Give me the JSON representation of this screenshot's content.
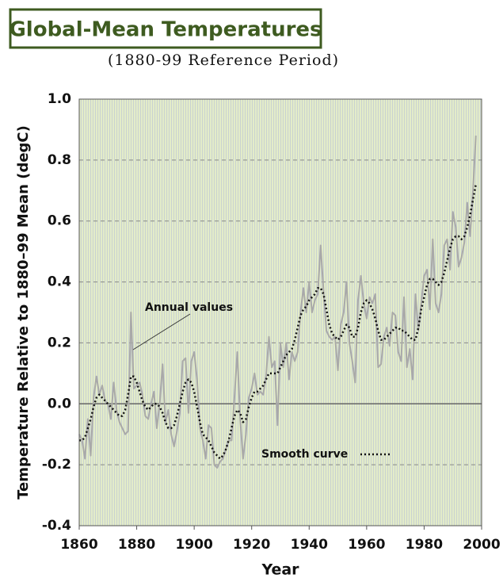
{
  "chart_data": {
    "type": "line",
    "title": "Global-Mean Temperatures",
    "subtitle": "(1880-99 Reference Period)",
    "x_label": "Year",
    "y_label": "Temperature Relative to 1880–99 Mean (degC)",
    "x": [
      1860,
      1861,
      1862,
      1863,
      1864,
      1865,
      1866,
      1867,
      1868,
      1869,
      1870,
      1871,
      1872,
      1873,
      1874,
      1875,
      1876,
      1877,
      1878,
      1879,
      1880,
      1881,
      1882,
      1883,
      1884,
      1885,
      1886,
      1887,
      1888,
      1889,
      1890,
      1891,
      1892,
      1893,
      1894,
      1895,
      1896,
      1897,
      1898,
      1899,
      1900,
      1901,
      1902,
      1903,
      1904,
      1905,
      1906,
      1907,
      1908,
      1909,
      1910,
      1911,
      1912,
      1913,
      1914,
      1915,
      1916,
      1917,
      1918,
      1919,
      1920,
      1921,
      1922,
      1923,
      1924,
      1925,
      1926,
      1927,
      1928,
      1929,
      1930,
      1931,
      1932,
      1933,
      1934,
      1935,
      1936,
      1937,
      1938,
      1939,
      1940,
      1941,
      1942,
      1943,
      1944,
      1945,
      1946,
      1947,
      1948,
      1949,
      1950,
      1951,
      1952,
      1953,
      1954,
      1955,
      1956,
      1957,
      1958,
      1959,
      1960,
      1961,
      1962,
      1963,
      1964,
      1965,
      1966,
      1967,
      1968,
      1969,
      1970,
      1971,
      1972,
      1973,
      1974,
      1975,
      1976,
      1977,
      1978,
      1979,
      1980,
      1981,
      1982,
      1983,
      1984,
      1985,
      1986,
      1987,
      1988,
      1989,
      1990,
      1991,
      1992,
      1993,
      1994,
      1995,
      1996,
      1997,
      1998
    ],
    "series": [
      {
        "name": "Annual values",
        "color": "#a9a9a9",
        "line_style": "solid",
        "values": [
          -0.1,
          -0.12,
          -0.18,
          -0.05,
          -0.17,
          0.02,
          0.09,
          0.03,
          0.06,
          0.01,
          0.0,
          -0.05,
          0.07,
          -0.02,
          -0.06,
          -0.08,
          -0.1,
          -0.09,
          0.3,
          0.05,
          0.06,
          0.07,
          0.03,
          -0.04,
          -0.05,
          0.0,
          0.04,
          -0.08,
          0.0,
          0.13,
          -0.06,
          -0.02,
          -0.1,
          -0.14,
          -0.09,
          -0.03,
          0.14,
          0.15,
          -0.03,
          0.14,
          0.17,
          0.08,
          -0.08,
          -0.12,
          -0.18,
          -0.07,
          -0.08,
          -0.2,
          -0.21,
          -0.19,
          -0.18,
          -0.15,
          -0.12,
          -0.12,
          0.02,
          0.17,
          -0.05,
          -0.18,
          -0.1,
          0.02,
          0.05,
          0.1,
          0.03,
          0.04,
          0.03,
          0.09,
          0.22,
          0.12,
          0.14,
          -0.07,
          0.2,
          0.12,
          0.2,
          0.08,
          0.17,
          0.14,
          0.17,
          0.3,
          0.38,
          0.3,
          0.4,
          0.3,
          0.34,
          0.36,
          0.52,
          0.37,
          0.24,
          0.22,
          0.21,
          0.22,
          0.11,
          0.26,
          0.3,
          0.4,
          0.2,
          0.14,
          0.07,
          0.34,
          0.42,
          0.33,
          0.28,
          0.35,
          0.33,
          0.36,
          0.12,
          0.13,
          0.22,
          0.25,
          0.19,
          0.3,
          0.29,
          0.17,
          0.14,
          0.35,
          0.12,
          0.18,
          0.08,
          0.36,
          0.24,
          0.33,
          0.42,
          0.44,
          0.31,
          0.54,
          0.33,
          0.3,
          0.36,
          0.52,
          0.54,
          0.44,
          0.63,
          0.58,
          0.45,
          0.48,
          0.53,
          0.66,
          0.55,
          0.7,
          0.88
        ]
      },
      {
        "name": "Smooth curve",
        "color": "#111111",
        "line_style": "dotted",
        "values": [
          -0.12,
          -0.12,
          -0.11,
          -0.08,
          -0.05,
          -0.01,
          0.02,
          0.03,
          0.02,
          0.01,
          0.0,
          -0.01,
          -0.02,
          -0.03,
          -0.04,
          -0.04,
          -0.02,
          0.03,
          0.09,
          0.09,
          0.07,
          0.04,
          0.01,
          -0.01,
          -0.02,
          -0.01,
          0.0,
          0.0,
          -0.01,
          -0.03,
          -0.06,
          -0.08,
          -0.08,
          -0.07,
          -0.04,
          0.0,
          0.04,
          0.07,
          0.08,
          0.07,
          0.04,
          -0.01,
          -0.06,
          -0.1,
          -0.11,
          -0.12,
          -0.14,
          -0.16,
          -0.17,
          -0.18,
          -0.17,
          -0.15,
          -0.12,
          -0.08,
          -0.04,
          -0.02,
          -0.03,
          -0.06,
          -0.05,
          -0.01,
          0.02,
          0.04,
          0.04,
          0.05,
          0.06,
          0.08,
          0.1,
          0.1,
          0.1,
          0.1,
          0.12,
          0.14,
          0.16,
          0.17,
          0.18,
          0.21,
          0.25,
          0.29,
          0.31,
          0.32,
          0.34,
          0.35,
          0.36,
          0.38,
          0.38,
          0.36,
          0.31,
          0.26,
          0.23,
          0.22,
          0.21,
          0.22,
          0.24,
          0.26,
          0.25,
          0.22,
          0.22,
          0.25,
          0.3,
          0.33,
          0.34,
          0.33,
          0.31,
          0.28,
          0.24,
          0.21,
          0.21,
          0.22,
          0.23,
          0.24,
          0.25,
          0.25,
          0.24,
          0.24,
          0.23,
          0.22,
          0.21,
          0.21,
          0.25,
          0.31,
          0.35,
          0.39,
          0.41,
          0.41,
          0.4,
          0.39,
          0.4,
          0.43,
          0.47,
          0.51,
          0.54,
          0.55,
          0.55,
          0.54,
          0.55,
          0.58,
          0.62,
          0.67,
          0.72
        ]
      }
    ],
    "xlim": [
      1860,
      2000
    ],
    "xticks": [
      1860,
      1880,
      1900,
      1920,
      1940,
      1960,
      1980,
      2000
    ],
    "ylim": [
      -0.4,
      1.0
    ],
    "yticks": [
      {
        "value": -0.4,
        "label": "-0.4"
      },
      {
        "value": -0.2,
        "label": "-0.2"
      },
      {
        "value": 0,
        "label": "0.0"
      },
      {
        "value": 0.2,
        "label": "0.2"
      },
      {
        "value": 0.4,
        "label": "0.4"
      },
      {
        "value": 0.6,
        "label": "0.6"
      },
      {
        "value": 0.8,
        "label": "0.8"
      },
      {
        "value": 1,
        "label": "1.0"
      }
    ],
    "grid": true
  }
}
